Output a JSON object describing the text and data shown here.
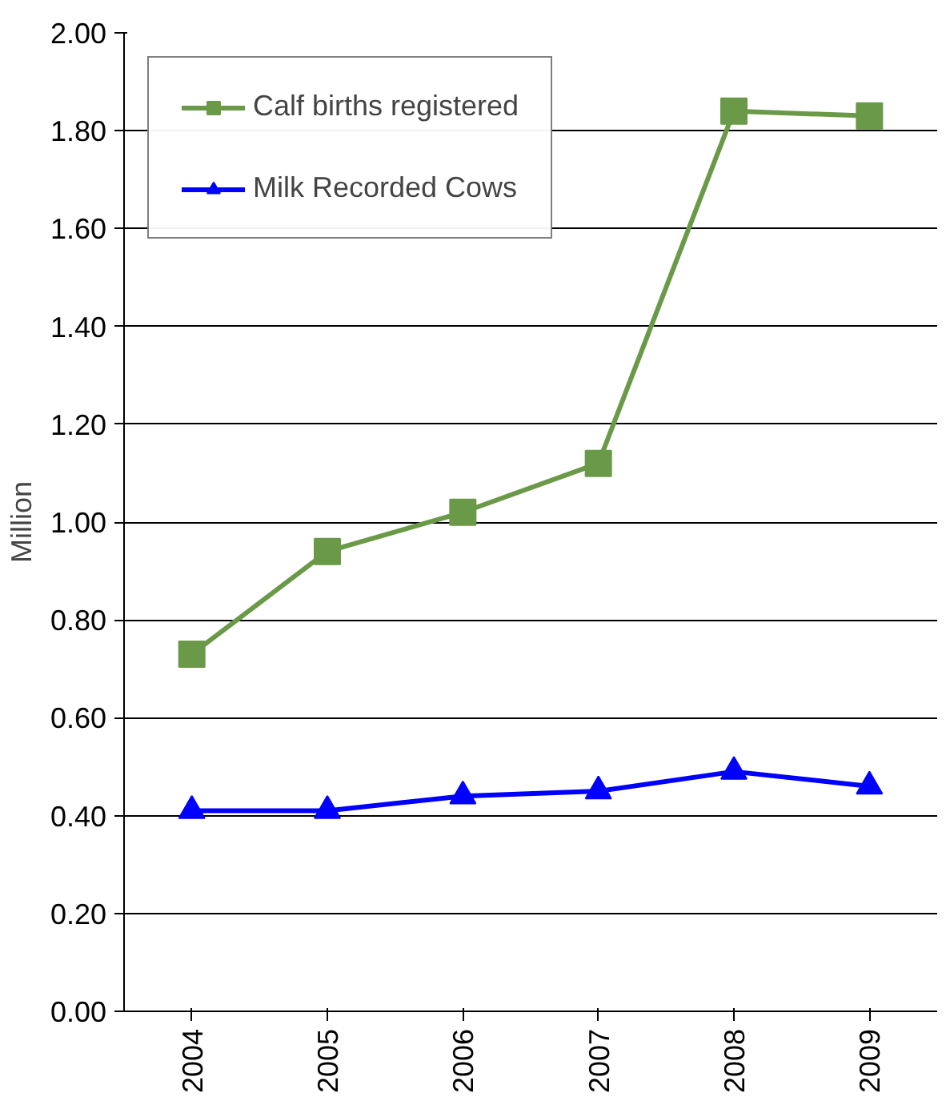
{
  "chart_data": {
    "type": "line",
    "ylabel": "Million",
    "categories": [
      "2004",
      "2005",
      "2006",
      "2007",
      "2008",
      "2009"
    ],
    "series": [
      {
        "name": "Calf births registered",
        "color": "#6a9a48",
        "marker": "square",
        "values": [
          0.73,
          0.94,
          1.02,
          1.12,
          1.84,
          1.83
        ]
      },
      {
        "name": "Milk Recorded Cows",
        "color": "#0000ff",
        "marker": "triangle",
        "values": [
          0.41,
          0.41,
          0.44,
          0.45,
          0.49,
          0.46
        ]
      }
    ],
    "ylim": [
      0,
      2
    ],
    "yticks": [
      {
        "value": 0,
        "label": "0.00"
      },
      {
        "value": 0.2,
        "label": "0.20"
      },
      {
        "value": 0.4,
        "label": "0.40"
      },
      {
        "value": 0.6,
        "label": "0.60"
      },
      {
        "value": 0.8,
        "label": "0.80"
      },
      {
        "value": 1.0,
        "label": "1.00"
      },
      {
        "value": 1.2,
        "label": "1.20"
      },
      {
        "value": 1.4,
        "label": "1.40"
      },
      {
        "value": 1.6,
        "label": "1.60"
      },
      {
        "value": 1.8,
        "label": "1.80"
      },
      {
        "value": 2.0,
        "label": "2.00"
      }
    ],
    "grid": "y",
    "legend": "top left",
    "line_style": "solid"
  }
}
